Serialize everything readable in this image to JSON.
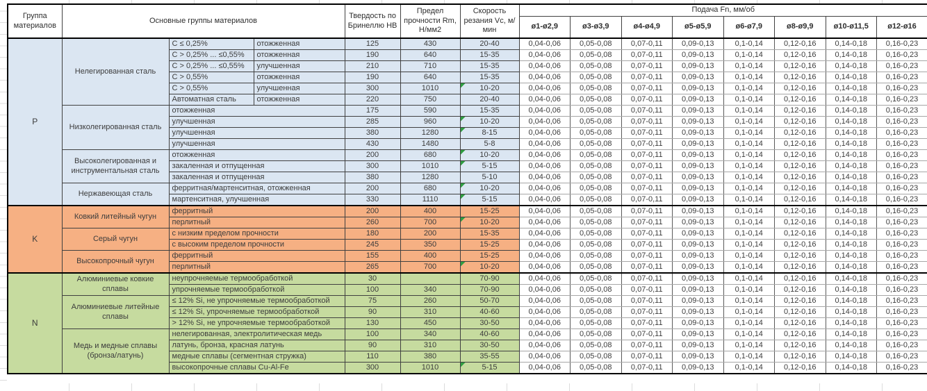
{
  "table": {
    "headers": {
      "col_group": "Группа материалов",
      "col_main_groups": "Основные группы материалов",
      "col_hardness": "Твердость по Бринеллю HB",
      "col_strength": "Предел прочности Rm, Н/мм2",
      "col_speed": "Скорость резания Vc, м/мин",
      "col_feed": "Подача Fn, мм/об",
      "feed_columns": [
        "ø1-ø2,9",
        "ø3-ø3,9",
        "ø4-ø4,9",
        "ø5-ø5,9",
        "ø6-ø7,9",
        "ø8-ø9,9",
        "ø10-ø11,5",
        "ø12-ø16"
      ]
    },
    "feed_values": [
      "0,04-0,06",
      "0,05-0,08",
      "0,07-0,11",
      "0,09-0,13",
      "0,1-0,14",
      "0,12-0,16",
      "0,14-0,18",
      "0,16-0,23"
    ],
    "colors": {
      "P": "#dbe6f2",
      "K": "#f6b083",
      "N": "#c6db9f",
      "flag": "#2f9e41"
    },
    "sections": [
      {
        "letter": "P",
        "groups": [
          {
            "name": "Нелегированная сталь",
            "rows": [
              {
                "spec": "C ≤ 0,25%",
                "state": "отожженная",
                "hb": "125",
                "rm": "430",
                "vc": "20-40",
                "flag": false
              },
              {
                "spec": "C > 0,25% ... ≤0,55%",
                "state": "отожженная",
                "hb": "190",
                "rm": "640",
                "vc": "15-35",
                "flag": false
              },
              {
                "spec": "C > 0,25% ... ≤0,55%",
                "state": "улучшенная",
                "hb": "210",
                "rm": "710",
                "vc": "15-35",
                "flag": false
              },
              {
                "spec": "C > 0,55%",
                "state": "отожженная",
                "hb": "190",
                "rm": "640",
                "vc": "15-35",
                "flag": false
              },
              {
                "spec": "C > 0,55%",
                "state": "улучшенная",
                "hb": "300",
                "rm": "1010",
                "vc": "10-20",
                "flag": true
              },
              {
                "spec": "Автоматная сталь",
                "state": "отожженная",
                "hb": "220",
                "rm": "750",
                "vc": "20-40",
                "flag": false
              }
            ]
          },
          {
            "name": "Низколегированная сталь",
            "rows": [
              {
                "detail": "отожженная",
                "hb": "175",
                "rm": "590",
                "vc": "15-35",
                "flag": false
              },
              {
                "detail": "улучшенная",
                "hb": "285",
                "rm": "960",
                "vc": "10-20",
                "flag": true
              },
              {
                "detail": "улучшенная",
                "hb": "380",
                "rm": "1280",
                "vc": "8-15",
                "flag": true
              },
              {
                "detail": "улучшенная",
                "hb": "430",
                "rm": "1480",
                "vc": "5-8",
                "flag": false
              }
            ]
          },
          {
            "name": "Высоколегированная и инструментальная сталь",
            "rows": [
              {
                "detail": "отожженная",
                "hb": "200",
                "rm": "680",
                "vc": "10-20",
                "flag": true
              },
              {
                "detail": "закаленная и отпущенная",
                "hb": "300",
                "rm": "1010",
                "vc": "5-15",
                "flag": true
              },
              {
                "detail": "закаленная и отпущенная",
                "hb": "380",
                "rm": "1280",
                "vc": "5-10",
                "flag": false
              }
            ]
          },
          {
            "name": "Нержавеющая сталь",
            "rows": [
              {
                "detail": "ферритная/мартенситная, отожженная",
                "hb": "200",
                "rm": "680",
                "vc": "10-20",
                "flag": true
              },
              {
                "detail": "мартенситная, улучшенная",
                "hb": "330",
                "rm": "1110",
                "vc": "5-15",
                "flag": true
              }
            ]
          }
        ]
      },
      {
        "letter": "K",
        "groups": [
          {
            "name": "Ковкий литейный чугун",
            "rows": [
              {
                "detail": "ферритный",
                "hb": "200",
                "rm": "400",
                "vc": "15-25",
                "flag": false
              },
              {
                "detail": "перлитный",
                "hb": "260",
                "rm": "700",
                "vc": "10-20",
                "flag": true
              }
            ]
          },
          {
            "name": "Серый чугун",
            "rows": [
              {
                "detail": "с низким пределом прочности",
                "hb": "180",
                "rm": "200",
                "vc": "15-35",
                "flag": false
              },
              {
                "detail": "с высоким пределом прочности",
                "hb": "245",
                "rm": "350",
                "vc": "15-25",
                "flag": false
              }
            ]
          },
          {
            "name": "Высокопрочный чугун",
            "rows": [
              {
                "detail": "ферритный",
                "hb": "155",
                "rm": "400",
                "vc": "15-25",
                "flag": false
              },
              {
                "detail": "перлитный",
                "hb": "265",
                "rm": "700",
                "vc": "10-20",
                "flag": true
              }
            ]
          }
        ]
      },
      {
        "letter": "N",
        "groups": [
          {
            "name": "Алюминиевые ковкие сплавы",
            "rows": [
              {
                "detail": "неупрочняемые термообработкой",
                "hb": "30",
                "rm": "",
                "vc": "70-90",
                "flag": false
              },
              {
                "detail": "упрочняемые термообработкой",
                "hb": "100",
                "rm": "340",
                "vc": "70-90",
                "flag": false
              }
            ]
          },
          {
            "name": "Алюминиевые литейные сплавы",
            "rows": [
              {
                "detail": "≤ 12% Si, не упрочняемые термообработкой",
                "hb": "75",
                "rm": "260",
                "vc": "50-70",
                "flag": false
              },
              {
                "detail": "≤ 12% Si, упрочняемые термообработкой",
                "hb": "90",
                "rm": "310",
                "vc": "40-60",
                "flag": false
              },
              {
                "detail": "> 12% Si, не упрочняемые термообработкой",
                "hb": "130",
                "rm": "450",
                "vc": "30-50",
                "flag": false
              }
            ]
          },
          {
            "name": "Медь и медные сплавы (бронза/латунь)",
            "rows": [
              {
                "detail": "нелегированная, электролитическая медь",
                "hb": "100",
                "rm": "340",
                "vc": "40-60",
                "flag": false
              },
              {
                "detail": "латунь, бронза, красная латунь",
                "hb": "90",
                "rm": "310",
                "vc": "30-50",
                "flag": false
              },
              {
                "detail": "медные сплавы (сегментная стружка)",
                "hb": "110",
                "rm": "380",
                "vc": "35-55",
                "flag": false
              },
              {
                "detail": "высокопрочные сплавы Cu-Al-Fe",
                "hb": "300",
                "rm": "1010",
                "vc": "5-15",
                "flag": true
              }
            ]
          }
        ]
      }
    ]
  }
}
